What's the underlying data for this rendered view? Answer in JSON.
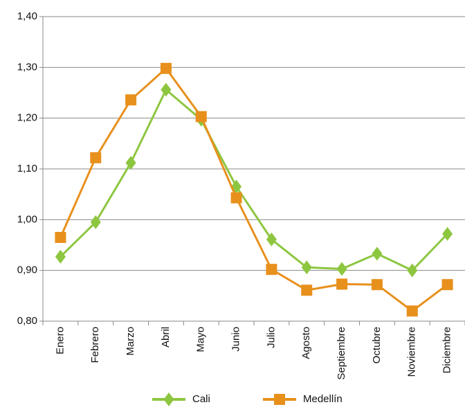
{
  "chart_data": {
    "type": "line",
    "categories": [
      "Enero",
      "Febrero",
      "Marzo",
      "Abril",
      "Mayo",
      "Junio",
      "Julio",
      "Agosto",
      "Septiembre",
      "Octubre",
      "Noviembre",
      "Diciembre"
    ],
    "series": [
      {
        "name": "Cali",
        "color": "#8dc63f",
        "marker": "diamond",
        "values": [
          0.927,
          0.995,
          1.112,
          1.256,
          1.197,
          1.065,
          0.961,
          0.906,
          0.903,
          0.933,
          0.9,
          0.972
        ]
      },
      {
        "name": "Medellín",
        "color": "#e8901c",
        "marker": "square",
        "values": [
          0.965,
          1.122,
          1.236,
          1.298,
          1.203,
          1.043,
          0.902,
          0.861,
          0.873,
          0.872,
          0.82,
          0.872
        ]
      }
    ],
    "ylim": [
      0.8,
      1.4
    ],
    "yticks": [
      {
        "value": 0.8,
        "label": "0,80"
      },
      {
        "value": 0.9,
        "label": "0,90"
      },
      {
        "value": 1.0,
        "label": "1,00"
      },
      {
        "value": 1.1,
        "label": "1,10"
      },
      {
        "value": 1.2,
        "label": "1,20"
      },
      {
        "value": 1.3,
        "label": "1,30"
      },
      {
        "value": 1.4,
        "label": "1,40"
      }
    ],
    "grid": true,
    "legend": "bottom"
  }
}
